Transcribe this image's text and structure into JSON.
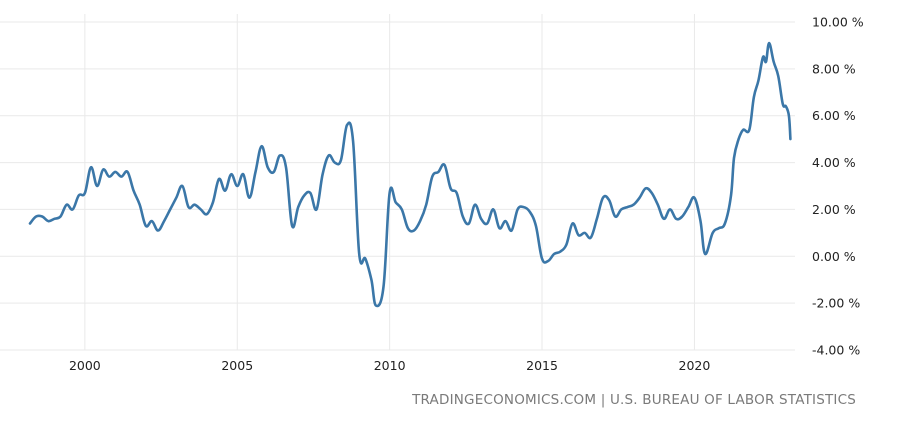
{
  "source_text": "TRADINGECONOMICS.COM | U.S. BUREAU OF LABOR STATISTICS",
  "colors": {
    "series": "#3b77a8",
    "grid": "#e9e9e9",
    "text": "#222222",
    "source": "#7a7a7a",
    "background": "#ffffff"
  },
  "chart_data": {
    "type": "line",
    "title": "",
    "xlabel": "",
    "ylabel": "",
    "grid": true,
    "legend": "none",
    "xlim": [
      1998.2,
      2023.3
    ],
    "ylim": [
      -4,
      10
    ],
    "x_ticks": [
      {
        "value": 2000,
        "label": "2000"
      },
      {
        "value": 2005,
        "label": "2005"
      },
      {
        "value": 2010,
        "label": "2010"
      },
      {
        "value": 2015,
        "label": "2015"
      },
      {
        "value": 2020,
        "label": "2020"
      }
    ],
    "y_ticks": [
      {
        "value": 10,
        "label": "10.00 %"
      },
      {
        "value": 8,
        "label": "8.00 %"
      },
      {
        "value": 6,
        "label": "6.00 %"
      },
      {
        "value": 4,
        "label": "4.00 %"
      },
      {
        "value": 2,
        "label": "2.00 %"
      },
      {
        "value": 0,
        "label": "0.00 %"
      },
      {
        "value": -2,
        "label": "-2.00 %"
      },
      {
        "value": -4,
        "label": "-4.00 %"
      }
    ],
    "series": [
      {
        "points": [
          [
            1998.2,
            1.4
          ],
          [
            1998.4,
            1.7
          ],
          [
            1998.6,
            1.7
          ],
          [
            1998.8,
            1.5
          ],
          [
            1999.0,
            1.6
          ],
          [
            1999.2,
            1.7
          ],
          [
            1999.4,
            2.2
          ],
          [
            1999.6,
            2.0
          ],
          [
            1999.8,
            2.6
          ],
          [
            2000.0,
            2.7
          ],
          [
            2000.2,
            3.8
          ],
          [
            2000.4,
            3.0
          ],
          [
            2000.6,
            3.7
          ],
          [
            2000.8,
            3.4
          ],
          [
            2001.0,
            3.6
          ],
          [
            2001.2,
            3.4
          ],
          [
            2001.4,
            3.6
          ],
          [
            2001.6,
            2.8
          ],
          [
            2001.8,
            2.2
          ],
          [
            2002.0,
            1.3
          ],
          [
            2002.2,
            1.5
          ],
          [
            2002.4,
            1.1
          ],
          [
            2002.6,
            1.5
          ],
          [
            2002.8,
            2.0
          ],
          [
            2003.0,
            2.5
          ],
          [
            2003.2,
            3.0
          ],
          [
            2003.4,
            2.1
          ],
          [
            2003.6,
            2.2
          ],
          [
            2003.8,
            2.0
          ],
          [
            2004.0,
            1.8
          ],
          [
            2004.2,
            2.3
          ],
          [
            2004.4,
            3.3
          ],
          [
            2004.6,
            2.8
          ],
          [
            2004.8,
            3.5
          ],
          [
            2005.0,
            3.0
          ],
          [
            2005.2,
            3.5
          ],
          [
            2005.4,
            2.5
          ],
          [
            2005.6,
            3.6
          ],
          [
            2005.8,
            4.7
          ],
          [
            2006.0,
            3.8
          ],
          [
            2006.2,
            3.6
          ],
          [
            2006.4,
            4.3
          ],
          [
            2006.6,
            3.8
          ],
          [
            2006.8,
            1.3
          ],
          [
            2007.0,
            2.1
          ],
          [
            2007.2,
            2.6
          ],
          [
            2007.4,
            2.7
          ],
          [
            2007.6,
            2.0
          ],
          [
            2007.8,
            3.5
          ],
          [
            2008.0,
            4.3
          ],
          [
            2008.2,
            4.0
          ],
          [
            2008.4,
            4.1
          ],
          [
            2008.6,
            5.6
          ],
          [
            2008.8,
            4.9
          ],
          [
            2009.0,
            0.1
          ],
          [
            2009.2,
            -0.1
          ],
          [
            2009.4,
            -1.0
          ],
          [
            2009.55,
            -2.1
          ],
          [
            2009.8,
            -1.3
          ],
          [
            2010.0,
            2.7
          ],
          [
            2010.2,
            2.3
          ],
          [
            2010.4,
            2.0
          ],
          [
            2010.6,
            1.2
          ],
          [
            2010.8,
            1.1
          ],
          [
            2011.0,
            1.5
          ],
          [
            2011.2,
            2.2
          ],
          [
            2011.4,
            3.4
          ],
          [
            2011.6,
            3.6
          ],
          [
            2011.8,
            3.9
          ],
          [
            2012.0,
            2.9
          ],
          [
            2012.2,
            2.7
          ],
          [
            2012.4,
            1.7
          ],
          [
            2012.6,
            1.4
          ],
          [
            2012.8,
            2.2
          ],
          [
            2013.0,
            1.6
          ],
          [
            2013.2,
            1.4
          ],
          [
            2013.4,
            2.0
          ],
          [
            2013.6,
            1.2
          ],
          [
            2013.8,
            1.5
          ],
          [
            2014.0,
            1.1
          ],
          [
            2014.2,
            2.0
          ],
          [
            2014.4,
            2.1
          ],
          [
            2014.6,
            1.9
          ],
          [
            2014.8,
            1.3
          ],
          [
            2015.0,
            -0.1
          ],
          [
            2015.2,
            -0.2
          ],
          [
            2015.4,
            0.1
          ],
          [
            2015.6,
            0.2
          ],
          [
            2015.8,
            0.5
          ],
          [
            2016.0,
            1.4
          ],
          [
            2016.2,
            0.9
          ],
          [
            2016.4,
            1.0
          ],
          [
            2016.6,
            0.8
          ],
          [
            2016.8,
            1.6
          ],
          [
            2017.0,
            2.5
          ],
          [
            2017.2,
            2.4
          ],
          [
            2017.4,
            1.7
          ],
          [
            2017.6,
            2.0
          ],
          [
            2017.8,
            2.1
          ],
          [
            2018.0,
            2.2
          ],
          [
            2018.2,
            2.5
          ],
          [
            2018.4,
            2.9
          ],
          [
            2018.6,
            2.7
          ],
          [
            2018.8,
            2.2
          ],
          [
            2019.0,
            1.6
          ],
          [
            2019.2,
            2.0
          ],
          [
            2019.4,
            1.6
          ],
          [
            2019.6,
            1.7
          ],
          [
            2019.8,
            2.1
          ],
          [
            2020.0,
            2.5
          ],
          [
            2020.2,
            1.5
          ],
          [
            2020.35,
            0.1
          ],
          [
            2020.6,
            1.0
          ],
          [
            2020.8,
            1.2
          ],
          [
            2021.0,
            1.4
          ],
          [
            2021.2,
            2.6
          ],
          [
            2021.3,
            4.2
          ],
          [
            2021.45,
            5.0
          ],
          [
            2021.6,
            5.4
          ],
          [
            2021.8,
            5.4
          ],
          [
            2021.95,
            6.8
          ],
          [
            2022.1,
            7.5
          ],
          [
            2022.25,
            8.5
          ],
          [
            2022.35,
            8.3
          ],
          [
            2022.45,
            9.1
          ],
          [
            2022.6,
            8.3
          ],
          [
            2022.75,
            7.7
          ],
          [
            2022.9,
            6.5
          ],
          [
            2023.0,
            6.4
          ],
          [
            2023.1,
            6.0
          ],
          [
            2023.15,
            5.0
          ]
        ]
      }
    ]
  }
}
